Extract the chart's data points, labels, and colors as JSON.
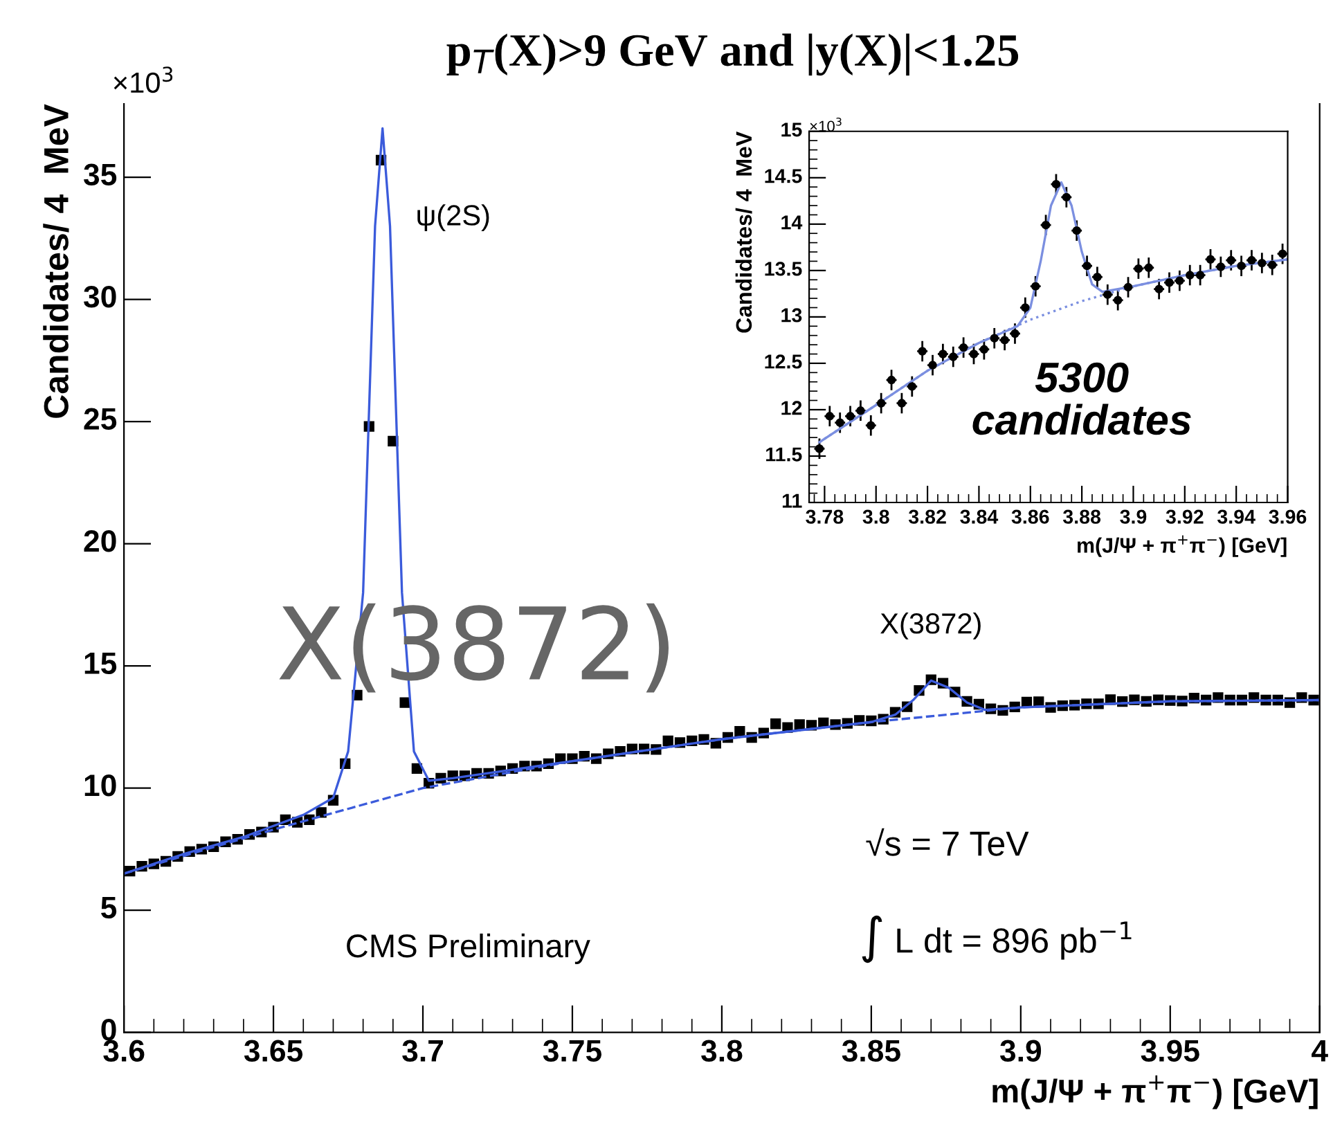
{
  "chart_data": [
    {
      "type": "scatter",
      "title": "p$_{T}$(X)>9 GeV and |y(X)|<1.25",
      "xlabel": "m(J/Ψ + π$^{+}$π$^{−}$) [GeV]",
      "ylabel": "Candidates/ 4  MeV",
      "xlim": [
        3.6,
        4.0
      ],
      "ylim": [
        0,
        38
      ],
      "xticks": [
        {
          "value": 3.6,
          "label": "3.6"
        },
        {
          "value": 3.65,
          "label": "3.65"
        },
        {
          "value": 3.7,
          "label": "3.7"
        },
        {
          "value": 3.75,
          "label": "3.75"
        },
        {
          "value": 3.8,
          "label": "3.8"
        },
        {
          "value": 3.85,
          "label": "3.85"
        },
        {
          "value": 3.9,
          "label": "3.9"
        },
        {
          "value": 3.95,
          "label": "3.95"
        },
        {
          "value": 4.0,
          "label": "4"
        }
      ],
      "yticks": [
        0,
        5,
        10,
        15,
        20,
        25,
        30,
        35
      ],
      "grid": false,
      "legend": false,
      "series": [
        {
          "color": "#000000",
          "marker": "square",
          "x": [
            3.602,
            3.606,
            3.61,
            3.614,
            3.618,
            3.622,
            3.626,
            3.63,
            3.634,
            3.638,
            3.642,
            3.646,
            3.65,
            3.654,
            3.658,
            3.662,
            3.666,
            3.67,
            3.674,
            3.678,
            3.682,
            3.686,
            3.69,
            3.694,
            3.698,
            3.702,
            3.706,
            3.71,
            3.714,
            3.718,
            3.722,
            3.726,
            3.73,
            3.734,
            3.738,
            3.742,
            3.746,
            3.75,
            3.754,
            3.758,
            3.762,
            3.766,
            3.77,
            3.774,
            3.778,
            3.782,
            3.786,
            3.79,
            3.794,
            3.798,
            3.802,
            3.806,
            3.81,
            3.814,
            3.818,
            3.822,
            3.826,
            3.83,
            3.834,
            3.838,
            3.842,
            3.846,
            3.85,
            3.854,
            3.858,
            3.862,
            3.866,
            3.87,
            3.874,
            3.878,
            3.882,
            3.886,
            3.89,
            3.894,
            3.898,
            3.902,
            3.906,
            3.91,
            3.914,
            3.918,
            3.922,
            3.926,
            3.93,
            3.934,
            3.938,
            3.942,
            3.946,
            3.95,
            3.954,
            3.958,
            3.962,
            3.966,
            3.97,
            3.974,
            3.978,
            3.982,
            3.986,
            3.99,
            3.994,
            3.998
          ],
          "values": [
            6.6,
            6.8,
            6.9,
            7.0,
            7.2,
            7.4,
            7.5,
            7.6,
            7.8,
            7.9,
            8.1,
            8.2,
            8.4,
            8.7,
            8.6,
            8.7,
            9.0,
            9.5,
            11.0,
            13.8,
            24.8,
            35.7,
            24.2,
            13.5,
            10.8,
            10.2,
            10.4,
            10.5,
            10.5,
            10.6,
            10.6,
            10.7,
            10.8,
            10.9,
            10.9,
            11.0,
            11.2,
            11.2,
            11.3,
            11.2,
            11.4,
            11.5,
            11.6,
            11.6,
            11.58,
            11.93,
            11.86,
            11.93,
            11.99,
            11.83,
            12.07,
            12.32,
            12.07,
            12.25,
            12.63,
            12.48,
            12.6,
            12.57,
            12.67,
            12.6,
            12.65,
            12.77,
            12.75,
            12.82,
            13.1,
            13.33,
            13.99,
            14.43,
            14.29,
            13.93,
            13.55,
            13.43,
            13.24,
            13.18,
            13.32,
            13.52,
            13.53,
            13.3,
            13.37,
            13.39,
            13.45,
            13.45,
            13.62,
            13.54,
            13.61,
            13.55,
            13.61,
            13.58,
            13.56,
            13.68,
            13.6,
            13.7,
            13.6,
            13.6,
            13.7,
            13.6,
            13.6,
            13.5,
            13.7,
            13.6
          ]
        },
        {
          "type": "line",
          "color": "#3b5bdb",
          "line_style": "solid",
          "x": [
            3.6,
            3.62,
            3.64,
            3.66,
            3.67,
            3.675,
            3.68,
            3.684,
            3.6865,
            3.689,
            3.693,
            3.697,
            3.702,
            3.71,
            3.75,
            3.8,
            3.85,
            3.858,
            3.864,
            3.87,
            3.876,
            3.882,
            3.888,
            3.9,
            3.95,
            4.0
          ],
          "values": [
            6.5,
            7.3,
            8.0,
            8.9,
            9.6,
            11.5,
            18,
            33,
            37.0,
            33,
            18,
            11.5,
            10.3,
            10.4,
            11.1,
            12.0,
            12.7,
            13.0,
            13.6,
            14.4,
            14.1,
            13.5,
            13.2,
            13.3,
            13.55,
            13.6
          ]
        },
        {
          "type": "line",
          "color": "#3b5bdb",
          "line_style": "dashed",
          "x": [
            3.6,
            3.65,
            3.7,
            3.75,
            3.8,
            3.85,
            3.9,
            3.95,
            4.0
          ],
          "values": [
            6.5,
            8.3,
            10.0,
            11.1,
            12.0,
            12.7,
            13.3,
            13.55,
            13.6
          ]
        }
      ],
      "annotations": [
        {
          "text": "ψ(2S)",
          "x": 3.686,
          "y": 35.7
        },
        {
          "text": "X(3872)",
          "x": 3.87,
          "y": 14.43
        },
        "X(3872)",
        "CMS Preliminary",
        "√s = 7 TeV",
        "∫ L dt = 896 pb$^{−1}$",
        "×10$^{3}$"
      ]
    },
    {
      "type": "scatter",
      "xlabel": "m(J/Ψ + π$^{+}$π$^{−}$) [GeV]",
      "ylabel": "Candidates/ 4  MeV",
      "xlim": [
        3.774,
        3.96
      ],
      "ylim": [
        11,
        15
      ],
      "xticks": [
        {
          "value": 3.78,
          "label": "3.78"
        },
        {
          "value": 3.8,
          "label": "3.8"
        },
        {
          "value": 3.82,
          "label": "3.82"
        },
        {
          "value": 3.84,
          "label": "3.84"
        },
        {
          "value": 3.86,
          "label": "3.86"
        },
        {
          "value": 3.88,
          "label": "3.88"
        },
        {
          "value": 3.9,
          "label": "3.9"
        },
        {
          "value": 3.92,
          "label": "3.92"
        },
        {
          "value": 3.94,
          "label": "3.94"
        },
        {
          "value": 3.96,
          "label": "3.96"
        }
      ],
      "yticks": [
        11,
        11.5,
        12,
        12.5,
        13,
        13.5,
        14,
        14.5,
        15
      ],
      "grid": false,
      "legend": false,
      "series": [
        {
          "color": "#000000",
          "marker": "circle",
          "x": [
            3.778,
            3.782,
            3.786,
            3.79,
            3.794,
            3.798,
            3.802,
            3.806,
            3.81,
            3.814,
            3.818,
            3.822,
            3.826,
            3.83,
            3.834,
            3.838,
            3.842,
            3.846,
            3.85,
            3.854,
            3.858,
            3.862,
            3.866,
            3.87,
            3.874,
            3.878,
            3.882,
            3.886,
            3.89,
            3.894,
            3.898,
            3.902,
            3.906,
            3.91,
            3.914,
            3.918,
            3.922,
            3.926,
            3.93,
            3.934,
            3.938,
            3.942,
            3.946,
            3.95,
            3.954,
            3.958
          ],
          "values": [
            11.58,
            11.93,
            11.86,
            11.93,
            11.99,
            11.83,
            12.07,
            12.32,
            12.07,
            12.25,
            12.63,
            12.48,
            12.6,
            12.57,
            12.67,
            12.6,
            12.65,
            12.77,
            12.75,
            12.82,
            13.1,
            13.33,
            13.99,
            14.43,
            14.29,
            13.93,
            13.55,
            13.43,
            13.24,
            13.18,
            13.32,
            13.52,
            13.53,
            13.3,
            13.37,
            13.39,
            13.45,
            13.45,
            13.62,
            13.54,
            13.61,
            13.55,
            13.61,
            13.58,
            13.56,
            13.68
          ],
          "errors": [
            0.11,
            0.11,
            0.11,
            0.11,
            0.11,
            0.11,
            0.11,
            0.11,
            0.11,
            0.11,
            0.11,
            0.11,
            0.11,
            0.11,
            0.11,
            0.11,
            0.11,
            0.11,
            0.11,
            0.11,
            0.11,
            0.11,
            0.11,
            0.11,
            0.11,
            0.11,
            0.11,
            0.11,
            0.11,
            0.11,
            0.11,
            0.11,
            0.11,
            0.11,
            0.11,
            0.11,
            0.11,
            0.11,
            0.11,
            0.11,
            0.11,
            0.11,
            0.11,
            0.11,
            0.11,
            0.11
          ],
          "xerrors": [
            0.002,
            0.002,
            0.002,
            0.002,
            0.002,
            0.002,
            0.002,
            0.002,
            0.002,
            0.002,
            0.002,
            0.002,
            0.002,
            0.002,
            0.002,
            0.002,
            0.002,
            0.002,
            0.002,
            0.002,
            0.002,
            0.002,
            0.002,
            0.002,
            0.002,
            0.002,
            0.002,
            0.002,
            0.002,
            0.002,
            0.002,
            0.002,
            0.002,
            0.002,
            0.002,
            0.002,
            0.002,
            0.002,
            0.002,
            0.002,
            0.002,
            0.002,
            0.002,
            0.002,
            0.002,
            0.002
          ]
        },
        {
          "type": "line",
          "color": "#7b8fe0",
          "line_style": "solid",
          "x": [
            3.778,
            3.8,
            3.82,
            3.84,
            3.855,
            3.86,
            3.864,
            3.868,
            3.872,
            3.876,
            3.88,
            3.884,
            3.888,
            3.9,
            3.92,
            3.94,
            3.96
          ],
          "values": [
            11.65,
            12.05,
            12.42,
            12.72,
            12.9,
            13.1,
            13.6,
            14.2,
            14.45,
            14.2,
            13.7,
            13.35,
            13.27,
            13.33,
            13.45,
            13.55,
            13.62
          ]
        },
        {
          "type": "line",
          "color": "#7b8fe0",
          "line_style": "dotted",
          "x": [
            3.778,
            3.8,
            3.82,
            3.84,
            3.86,
            3.88,
            3.9,
            3.92,
            3.94,
            3.96
          ],
          "values": [
            11.65,
            12.05,
            12.42,
            12.72,
            12.97,
            13.17,
            13.33,
            13.45,
            13.55,
            13.62
          ]
        }
      ],
      "annotations": [
        "5300\ncandidates",
        "×10$^{3}$"
      ]
    }
  ]
}
